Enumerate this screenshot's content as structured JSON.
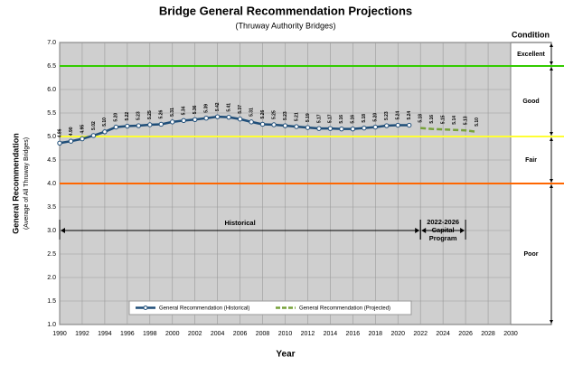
{
  "chart_data": {
    "type": "line",
    "title": "Bridge General Recommendation Projections",
    "subtitle": "(Thruway Authority Bridges)",
    "x_label": "Year",
    "y_label": "General Recommendation",
    "y_sublabel": "(Average of All Thruway Bridges)",
    "xlim": [
      1990,
      2030
    ],
    "xticks": [
      1990,
      1992,
      1994,
      1996,
      1998,
      2000,
      2002,
      2004,
      2006,
      2008,
      2010,
      2012,
      2014,
      2016,
      2018,
      2020,
      2022,
      2024,
      2026,
      2028,
      2030
    ],
    "ylim": [
      1,
      7
    ],
    "yticks": [
      {
        "value": 1,
        "label": "1.0"
      },
      {
        "value": 1.5,
        "label": "1.5"
      },
      {
        "value": 2,
        "label": "2.0"
      },
      {
        "value": 2.5,
        "label": "2.5"
      },
      {
        "value": 3,
        "label": "3.0"
      },
      {
        "value": 3.5,
        "label": "3.5"
      },
      {
        "value": 4,
        "label": "4.0"
      },
      {
        "value": 4.5,
        "label": "4.5"
      },
      {
        "value": 5,
        "label": "5.0"
      },
      {
        "value": 5.5,
        "label": "5.5"
      },
      {
        "value": 6,
        "label": "6.0"
      },
      {
        "value": 6.5,
        "label": "6.5"
      },
      {
        "value": 7,
        "label": "7.0"
      }
    ],
    "grid": true,
    "series": [
      {
        "name": "General Recommendation (Historical)",
        "color": "#1f4e79",
        "dashed": false,
        "x": [
          1990,
          1991,
          1992,
          1993,
          1994,
          1995,
          1996,
          1997,
          1998,
          1999,
          2000,
          2001,
          2002,
          2003,
          2004,
          2005,
          2006,
          2007,
          2008,
          2009,
          2010,
          2011,
          2012,
          2013,
          2014,
          2015,
          2016,
          2017,
          2018,
          2019,
          2020,
          2021
        ],
        "values": [
          4.86,
          4.9,
          4.95,
          5.02,
          5.1,
          5.2,
          5.22,
          5.23,
          5.25,
          5.26,
          5.31,
          5.34,
          5.36,
          5.39,
          5.42,
          5.41,
          5.37,
          5.31,
          5.26,
          5.25,
          5.23,
          5.21,
          5.19,
          5.17,
          5.17,
          5.16,
          5.16,
          5.18,
          5.2,
          5.23,
          5.24,
          5.24
        ],
        "value_labels": [
          "4.86",
          "4.90",
          "4.95",
          "5.02",
          "5.10",
          "5.20",
          "5.22",
          "5.23",
          "5.25",
          "5.26",
          "5.31",
          "5.34",
          "5.36",
          "5.39",
          "5.42",
          "5.41",
          "5.37",
          "5.31",
          "5.26",
          "5.25",
          "5.23",
          "5.21",
          "5.19",
          "5.17",
          "5.17",
          "5.16",
          "5.16",
          "5.18",
          "5.20",
          "5.23",
          "5.24",
          "5.24"
        ]
      },
      {
        "name": "General Recommendation (Projected)",
        "color": "#77a23a",
        "dashed": true,
        "x": [
          2022,
          2023,
          2024,
          2025,
          2026,
          2027
        ],
        "values": [
          5.18,
          5.16,
          5.15,
          5.14,
          5.13,
          5.1
        ],
        "value_labels": [
          "5.18",
          "5.16",
          "5.15",
          "5.14",
          "5.13",
          "5.10"
        ]
      }
    ],
    "thresholds": [
      {
        "value": 6.5,
        "color": "#33cc00"
      },
      {
        "value": 5,
        "color": "#ffff33"
      },
      {
        "value": 4,
        "color": "#ff6600"
      }
    ],
    "condition_title": "Condition",
    "conditions": [
      {
        "label": "Excellent",
        "range": [
          6.5,
          7
        ]
      },
      {
        "label": "Good",
        "range": [
          5,
          6.5
        ]
      },
      {
        "label": "Fair",
        "range": [
          4,
          5
        ]
      },
      {
        "label": "Poor",
        "range": [
          1,
          4
        ]
      }
    ],
    "annotations": [
      {
        "lines": [
          "Historical"
        ],
        "span": [
          1990,
          2022
        ],
        "y": 3
      },
      {
        "lines": [
          "2022-2026",
          "Capital",
          "Program"
        ],
        "span": [
          2022,
          2026
        ],
        "y": 3
      }
    ]
  }
}
